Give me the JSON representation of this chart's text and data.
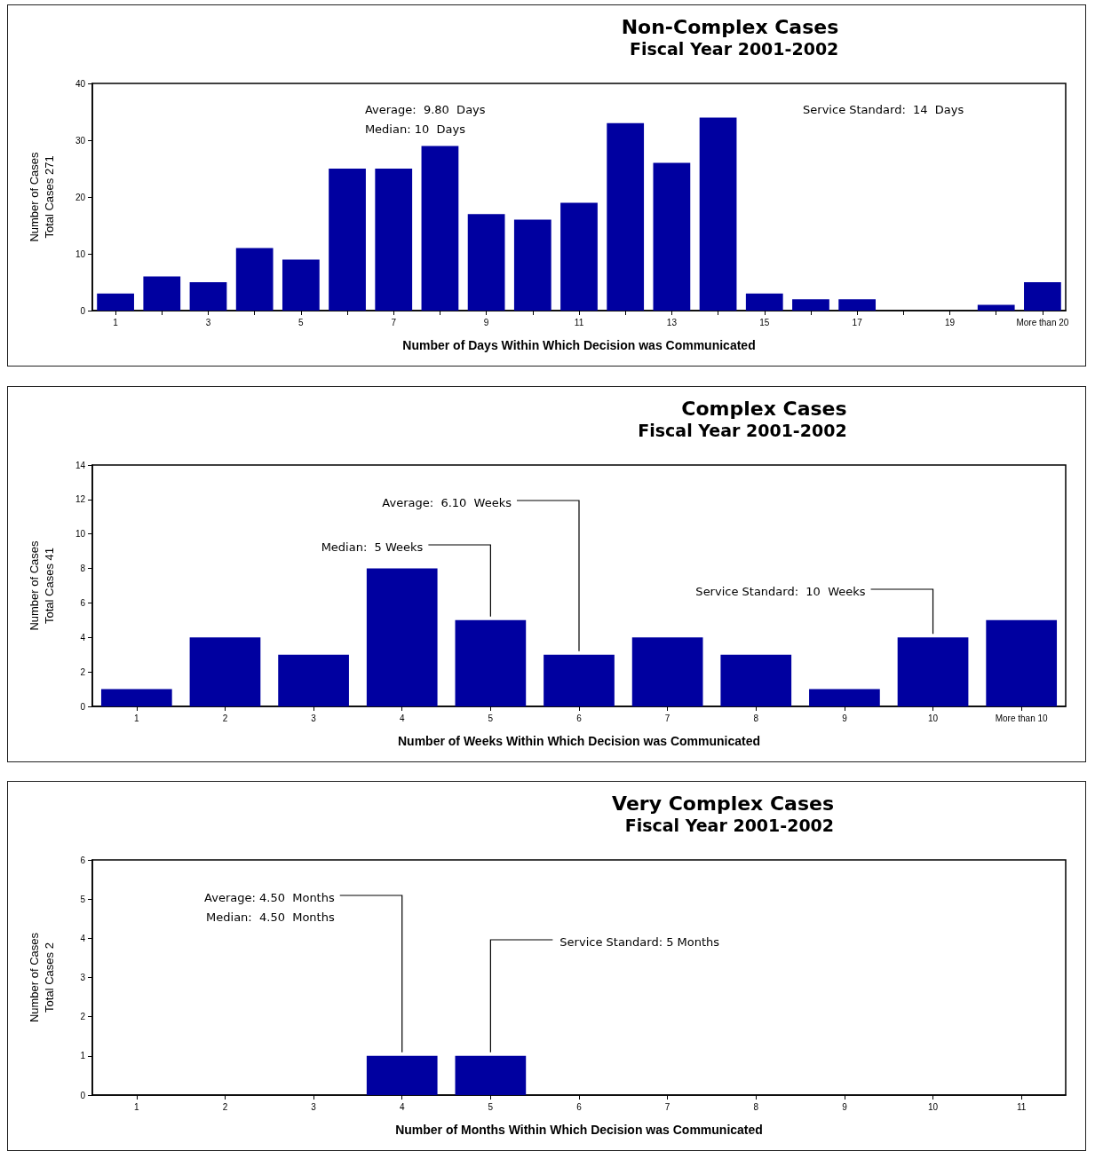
{
  "chart_data": [
    {
      "type": "bar",
      "title": "Non-Complex Cases",
      "subtitle": "Fiscal Year 2001-2002",
      "xlabel": "Number of Days Within Which Decision was Communicated",
      "ylabel": "Number of Cases\nTotal Cases 271",
      "categories": [
        "1",
        null,
        "3",
        null,
        "5",
        null,
        "7",
        null,
        "9",
        null,
        "11",
        null,
        "13",
        null,
        "15",
        null,
        "17",
        null,
        "19",
        null,
        "More than 20"
      ],
      "values": [
        3,
        6,
        5,
        11,
        9,
        25,
        25,
        29,
        17,
        16,
        19,
        33,
        26,
        34,
        3,
        2,
        2,
        0,
        0,
        1,
        5
      ],
      "color": "#0000a0",
      "ylim": [
        0,
        40
      ],
      "yticks": [
        0,
        10,
        20,
        30,
        40
      ],
      "grid": false,
      "annotations": [
        "Average:  9.80  Days\nMedian: 10  Days",
        "Service Standard:  14  Days"
      ]
    },
    {
      "type": "bar",
      "title": "Complex Cases",
      "subtitle": "Fiscal Year 2001-2002",
      "xlabel": "Number of Weeks Within Which Decision was Communicated",
      "ylabel": "Number of Cases\nTotal Cases 41",
      "categories": [
        "1",
        "2",
        "3",
        "4",
        "5",
        "6",
        "7",
        "8",
        "9",
        "10",
        "More than 10"
      ],
      "values": [
        1,
        4,
        3,
        8,
        5,
        3,
        4,
        3,
        1,
        4,
        5
      ],
      "color": "#0000a0",
      "ylim": [
        0,
        14
      ],
      "yticks": [
        0,
        2,
        4,
        6,
        8,
        10,
        12,
        14
      ],
      "grid": false,
      "annotations": [
        {
          "text": "Average:  6.10  Weeks",
          "x": "6",
          "y": 3
        },
        {
          "text": "Median:  5 Weeks",
          "x": "5",
          "y": 5
        },
        {
          "text": "Service Standard:  10  Weeks",
          "x": "10",
          "y": 4
        }
      ]
    },
    {
      "type": "bar",
      "title": "Very Complex Cases",
      "subtitle": "Fiscal Year 2001-2002",
      "xlabel": "Number of Months Within Which Decision was Communicated",
      "ylabel": "Number of Cases\nTotal Cases 2",
      "categories": [
        "1",
        "2",
        "3",
        "4",
        "5",
        "6",
        "7",
        "8",
        "9",
        "10",
        "11"
      ],
      "values": [
        0,
        0,
        0,
        1,
        1,
        0,
        0,
        0,
        0,
        0,
        0
      ],
      "color": "#0000a0",
      "ylim": [
        0,
        6
      ],
      "yticks": [
        0,
        1,
        2,
        3,
        4,
        5,
        6
      ],
      "grid": false,
      "annotations": [
        {
          "text": "Average: 4.50  Months\nMedian:  4.50  Months",
          "x": "4",
          "y": 1
        },
        {
          "text": "Service Standard: 5 Months",
          "x": "5",
          "y": 1
        }
      ]
    }
  ]
}
